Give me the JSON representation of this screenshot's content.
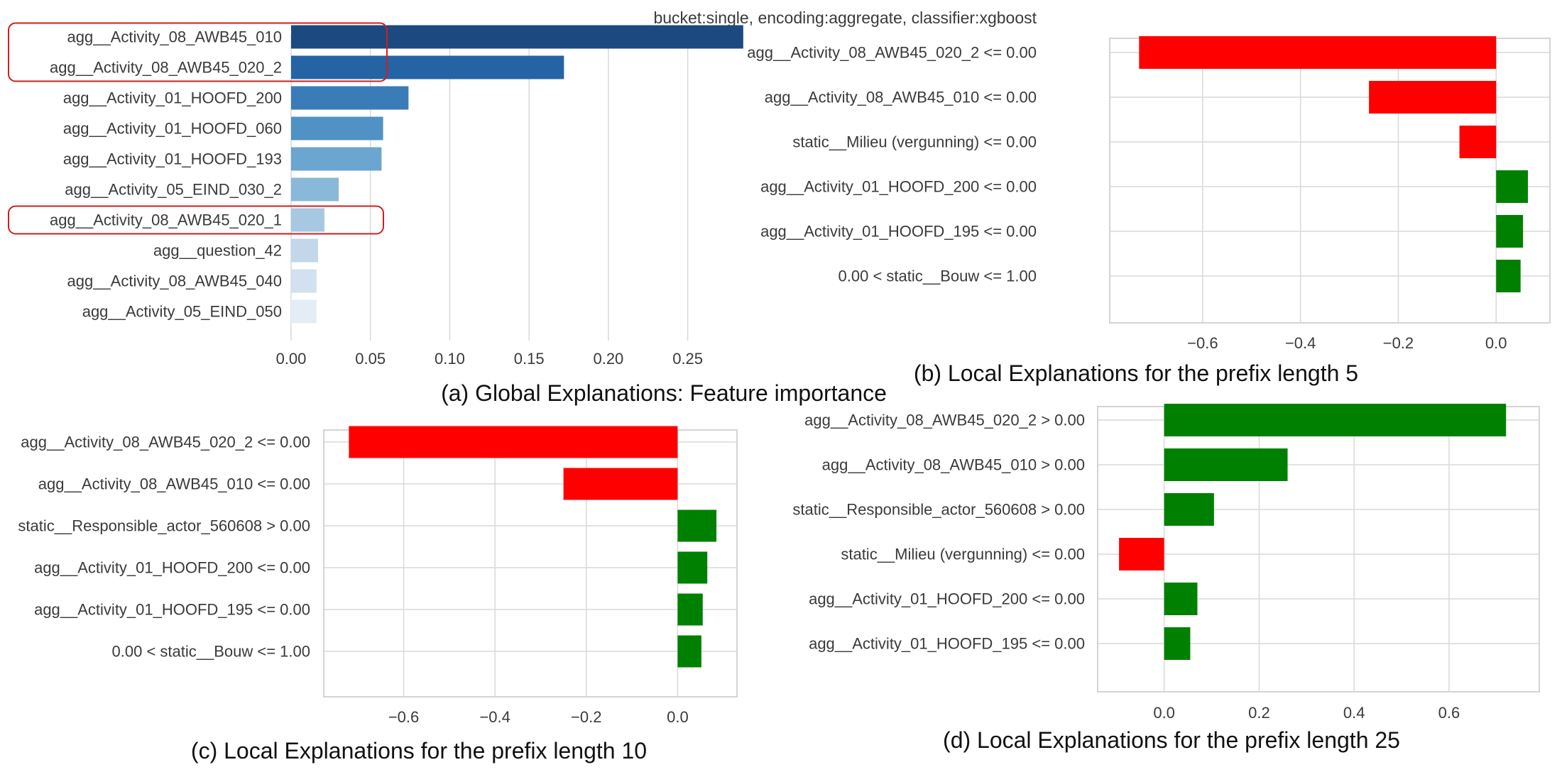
{
  "chart_data": [
    {
      "id": "a",
      "type": "bar",
      "orientation": "horizontal",
      "title": "bucket:single, encoding:aggregate, classifier:xgboost",
      "caption": "(a) Global Explanations: Feature importance",
      "categories": [
        "agg__Activity_08_AWB45_010",
        "agg__Activity_08_AWB45_020_2",
        "agg__Activity_01_HOOFD_200",
        "agg__Activity_01_HOOFD_060",
        "agg__Activity_01_HOOFD_193",
        "agg__Activity_05_EIND_030_2",
        "agg__Activity_08_AWB45_020_1",
        "agg__question_42",
        "agg__Activity_08_AWB45_040",
        "agg__Activity_05_EIND_050"
      ],
      "values": [
        0.285,
        0.172,
        0.074,
        0.058,
        0.057,
        0.03,
        0.021,
        0.017,
        0.016,
        0.016
      ],
      "colors": [
        "#1c4a80",
        "#2464a4",
        "#3a7cb8",
        "#5192c4",
        "#6aa6cf",
        "#8ab8d8",
        "#a6c8e2",
        "#c2d7ea",
        "#d2e1ef",
        "#e4edf6"
      ],
      "highlighted_categories": [
        "agg__Activity_08_AWB45_010",
        "agg__Activity_08_AWB45_020_2",
        "agg__Activity_08_AWB45_020_1"
      ],
      "xticks": [
        0.0,
        0.05,
        0.1,
        0.15,
        0.2,
        0.25
      ],
      "xtick_labels": [
        "0.00",
        "0.05",
        "0.10",
        "0.15",
        "0.20",
        "0.25"
      ],
      "xlim": [
        0,
        0.29
      ],
      "grid": true,
      "frame": false
    },
    {
      "id": "b",
      "type": "bar",
      "orientation": "horizontal",
      "caption": "(b) Local Explanations for the prefix length 5",
      "categories": [
        "agg__Activity_08_AWB45_020_2 <= 0.00",
        "agg__Activity_08_AWB45_010 <= 0.00",
        "static__Milieu (vergunning) <= 0.00",
        "agg__Activity_01_HOOFD_200 <= 0.00",
        "agg__Activity_01_HOOFD_195 <= 0.00",
        "0.00 < static__Bouw <= 1.00"
      ],
      "values": [
        -0.73,
        -0.26,
        -0.075,
        0.065,
        0.055,
        0.05
      ],
      "positive_color": "#008000",
      "negative_color": "#ff0000",
      "xticks": [
        -0.6,
        -0.4,
        -0.2,
        0.0
      ],
      "xtick_labels": [
        "−0.6",
        "−0.4",
        "−0.2",
        "0.0"
      ],
      "xlim": [
        -0.79,
        0.11
      ],
      "grid": true,
      "frame": true
    },
    {
      "id": "c",
      "type": "bar",
      "orientation": "horizontal",
      "caption": "(c) Local Explanations for the prefix length 10",
      "categories": [
        "agg__Activity_08_AWB45_020_2 <= 0.00",
        "agg__Activity_08_AWB45_010 <= 0.00",
        "static__Responsible_actor_560608 > 0.00",
        "agg__Activity_01_HOOFD_200 <= 0.00",
        "agg__Activity_01_HOOFD_195 <= 0.00",
        "0.00 < static__Bouw <= 1.00"
      ],
      "values": [
        -0.72,
        -0.25,
        0.085,
        0.065,
        0.055,
        0.052
      ],
      "positive_color": "#008000",
      "negative_color": "#ff0000",
      "xticks": [
        -0.6,
        -0.4,
        -0.2,
        0.0
      ],
      "xtick_labels": [
        "−0.6",
        "−0.4",
        "−0.2",
        "0.0"
      ],
      "xlim": [
        -0.775,
        0.13
      ],
      "grid": true,
      "frame": true
    },
    {
      "id": "d",
      "type": "bar",
      "orientation": "horizontal",
      "caption": "(d) Local Explanations for the prefix length 25",
      "categories": [
        "agg__Activity_08_AWB45_020_2 > 0.00",
        "agg__Activity_08_AWB45_010 > 0.00",
        "static__Responsible_actor_560608 > 0.00",
        "static__Milieu (vergunning) <= 0.00",
        "agg__Activity_01_HOOFD_200 <= 0.00",
        "agg__Activity_01_HOOFD_195 <= 0.00"
      ],
      "values": [
        0.72,
        0.26,
        0.105,
        -0.095,
        0.07,
        0.055
      ],
      "positive_color": "#008000",
      "negative_color": "#ff0000",
      "xticks": [
        0.0,
        0.2,
        0.4,
        0.6
      ],
      "xtick_labels": [
        "0.0",
        "0.2",
        "0.4",
        "0.6"
      ],
      "xlim": [
        -0.14,
        0.79
      ],
      "grid": true,
      "frame": true
    }
  ]
}
